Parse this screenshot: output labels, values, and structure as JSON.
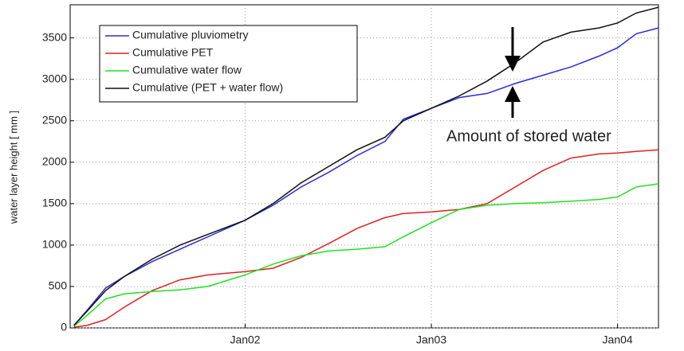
{
  "chart_data": {
    "type": "line",
    "ylabel": "water layer height [ mm ]",
    "annotation": "Amount of stored water",
    "x": [
      2001.08,
      2001.15,
      2001.25,
      2001.35,
      2001.5,
      2001.65,
      2001.8,
      2002.0,
      2002.15,
      2002.3,
      2002.45,
      2002.6,
      2002.75,
      2002.85,
      2003.0,
      2003.15,
      2003.3,
      2003.45,
      2003.6,
      2003.75,
      2003.9,
      2004.0,
      2004.1,
      2004.22
    ],
    "series": [
      {
        "name": "Cumulative pluviometry",
        "color": "#2b2bd6",
        "values": [
          30,
          210,
          480,
          620,
          800,
          950,
          1100,
          1300,
          1480,
          1700,
          1880,
          2080,
          2250,
          2520,
          2650,
          2780,
          2830,
          2950,
          3050,
          3150,
          3280,
          3380,
          3550,
          3620
        ]
      },
      {
        "name": "Cumulative PET",
        "color": "#e02020",
        "values": [
          10,
          30,
          100,
          250,
          450,
          580,
          640,
          680,
          720,
          850,
          1020,
          1200,
          1330,
          1380,
          1400,
          1430,
          1500,
          1700,
          1900,
          2050,
          2100,
          2110,
          2130,
          2150
        ]
      },
      {
        "name": "Cumulative water flow",
        "color": "#22e022",
        "values": [
          20,
          150,
          350,
          410,
          440,
          460,
          500,
          640,
          770,
          870,
          930,
          950,
          980,
          1100,
          1270,
          1430,
          1480,
          1500,
          1510,
          1530,
          1550,
          1580,
          1700,
          1740
        ]
      },
      {
        "name": "Cumulative (PET + water flow)",
        "color": "#111111",
        "values": [
          30,
          200,
          450,
          620,
          830,
          1000,
          1130,
          1300,
          1500,
          1750,
          1950,
          2150,
          2300,
          2500,
          2650,
          2800,
          2980,
          3200,
          3450,
          3570,
          3620,
          3680,
          3800,
          3870
        ]
      }
    ],
    "xlim": [
      2001.06,
      2004.22
    ],
    "xticks": [
      {
        "value": 2002,
        "label": "Jan02"
      },
      {
        "value": 2003,
        "label": "Jan03"
      },
      {
        "value": 2004,
        "label": "Jan04"
      }
    ],
    "ylim": [
      0,
      3900
    ],
    "yticks": [
      0,
      500,
      1000,
      1500,
      2000,
      2500,
      3000,
      3500
    ],
    "grid": true,
    "legend": "upper left"
  }
}
